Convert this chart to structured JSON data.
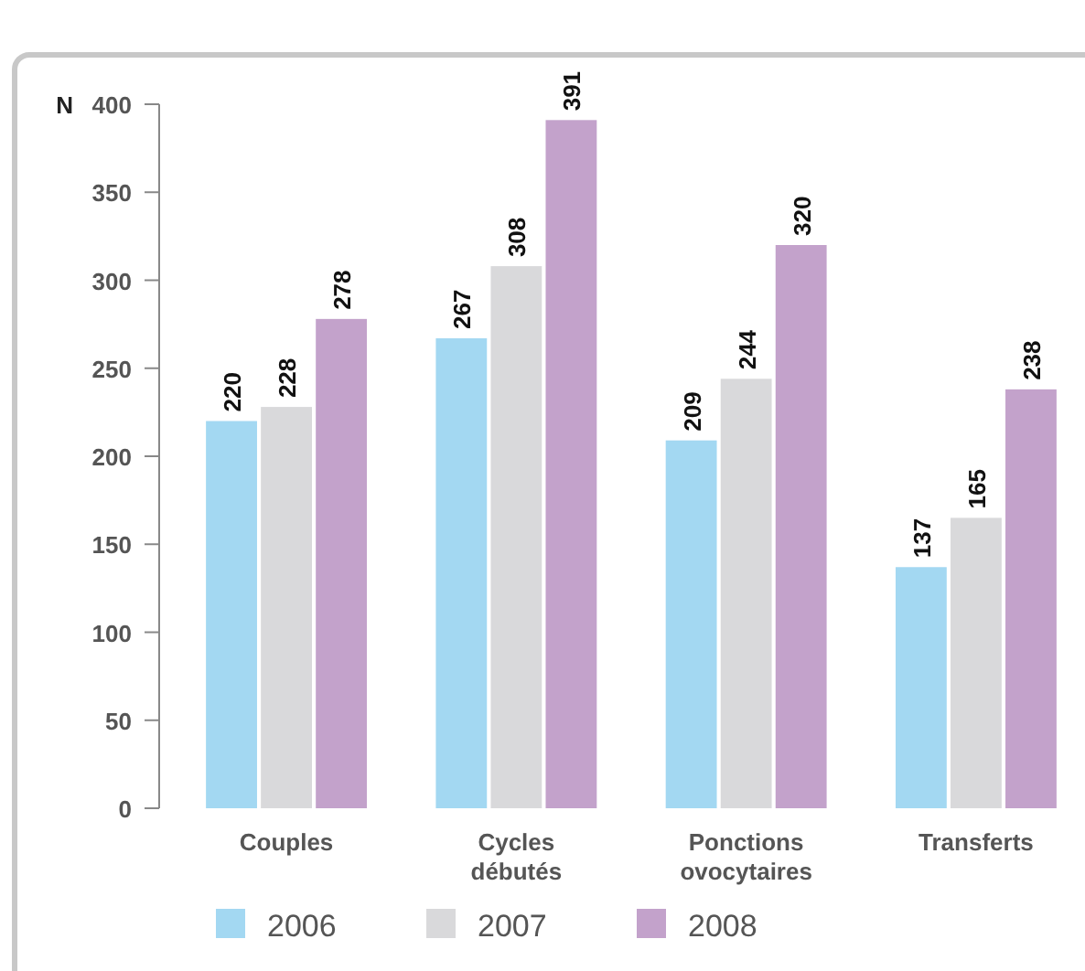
{
  "chart_data": {
    "type": "bar",
    "ylabel": "N",
    "categories": [
      "Couples",
      "Cycles débutés",
      "Ponctions ovocytaires",
      "Transferts"
    ],
    "series": [
      {
        "name": "2006",
        "color": "#a3d8f2",
        "values": [
          220,
          267,
          209,
          137
        ]
      },
      {
        "name": "2007",
        "color": "#d9d9db",
        "values": [
          228,
          308,
          244,
          165
        ]
      },
      {
        "name": "2008",
        "color": "#c3a2cb",
        "values": [
          278,
          391,
          320,
          238
        ]
      }
    ],
    "ylim": [
      0,
      400
    ],
    "yticks": [
      0,
      50,
      100,
      150,
      200,
      250,
      300,
      350,
      400
    ],
    "data_labels": true,
    "legend": "bottom",
    "grid": false
  }
}
